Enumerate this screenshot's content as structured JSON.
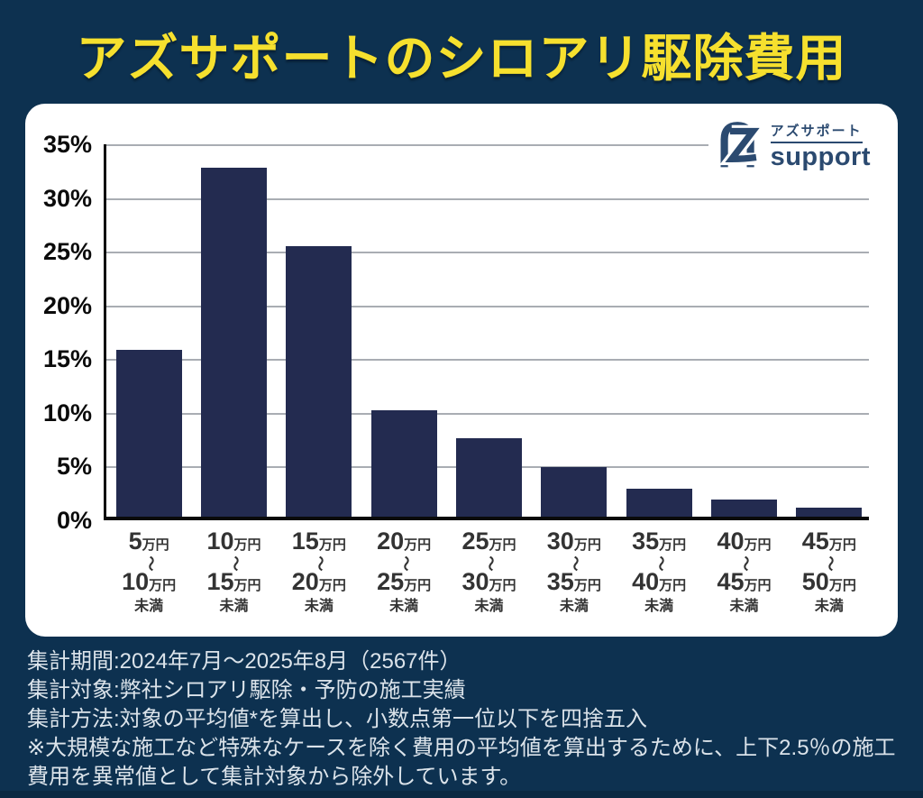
{
  "page": {
    "title": "アズサポートのシロアリ駆除費用",
    "colors": {
      "background": "#0d3150",
      "title": "#f6e02e",
      "card": "#ffffff",
      "bottom_strip": "#0a2942"
    }
  },
  "logo": {
    "brand_jp": "アズサポート",
    "brand_en": "support",
    "color": "#2b4a70",
    "mark": "az-monogram"
  },
  "chart_data": {
    "type": "bar",
    "title": "アズサポートのシロアリ駆除費用",
    "categories": [
      "5万円～10万円未満",
      "10万円～15万円未満",
      "15万円～20万円未満",
      "20万円～25万円未満",
      "25万円～30万円未満",
      "30万円～35万円未満",
      "35万円～40万円未満",
      "40万円～45万円未満",
      "45万円～50万円未満"
    ],
    "categories_parts": [
      {
        "from": "5",
        "to": "10"
      },
      {
        "from": "10",
        "to": "15"
      },
      {
        "from": "15",
        "to": "20"
      },
      {
        "from": "20",
        "to": "25"
      },
      {
        "from": "25",
        "to": "30"
      },
      {
        "from": "30",
        "to": "35"
      },
      {
        "from": "35",
        "to": "40"
      },
      {
        "from": "40",
        "to": "45"
      },
      {
        "from": "45",
        "to": "50"
      }
    ],
    "unit": "万円",
    "tilde": "～",
    "under_label": "未満",
    "values": [
      15.5,
      32.5,
      25.2,
      9.9,
      7.3,
      4.6,
      2.6,
      1.6,
      0.8
    ],
    "yticks": [
      "35%",
      "30%",
      "25%",
      "20%",
      "15%",
      "10%",
      "5%",
      "0%"
    ],
    "ylim": [
      0,
      35
    ],
    "grid": true,
    "legend": "none",
    "bar_color": "#232b50",
    "axis_color": "#0a0a0a",
    "gridline_color": "#a9adb3"
  },
  "footer": {
    "lines": [
      "集計期間:2024年7月～2025年8月（2567件）",
      "集計対象:弊社シロアリ駆除・予防の施工実績",
      "集計方法:対象の平均値*を算出し、小数点第一位以下を四捨五入",
      "※大規模な施工など特殊なケースを除く費用の平均値を算出するために、上下2.5％の施工費用を異常値として集計対象から除外しています。"
    ]
  }
}
